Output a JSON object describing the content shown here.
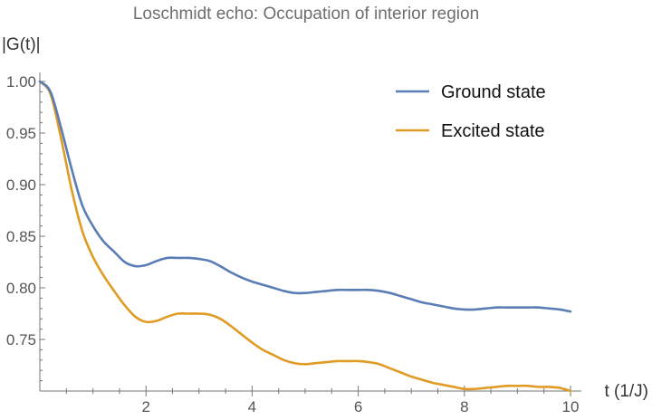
{
  "chart_data": {
    "type": "line",
    "title": "Loschmidt echo: Occupation of interior region",
    "xlabel": "t (1/J)",
    "ylabel": "|G(t)|",
    "xlim": [
      0,
      10
    ],
    "ylim": [
      0.7,
      1.0
    ],
    "x_ticks": [
      2,
      4,
      6,
      8,
      10
    ],
    "x_tick_labels": [
      "2",
      "4",
      "6",
      "8",
      "10"
    ],
    "y_ticks": [
      0.75,
      0.8,
      0.85,
      0.9,
      0.95,
      1.0
    ],
    "y_tick_labels": [
      "0.75",
      "0.80",
      "0.85",
      "0.90",
      "0.95",
      "1.00"
    ],
    "grid": false,
    "legend_position": "top-right",
    "x": [
      0,
      0.2,
      0.4,
      0.6,
      0.8,
      1.0,
      1.2,
      1.4,
      1.6,
      1.8,
      2.0,
      2.2,
      2.4,
      2.6,
      2.8,
      3.0,
      3.2,
      3.4,
      3.6,
      3.8,
      4.0,
      4.2,
      4.4,
      4.6,
      4.8,
      5.0,
      5.2,
      5.4,
      5.6,
      5.8,
      6.0,
      6.2,
      6.4,
      6.6,
      6.8,
      7.0,
      7.2,
      7.4,
      7.6,
      7.8,
      8.0,
      8.2,
      8.4,
      8.6,
      8.8,
      9.0,
      9.2,
      9.4,
      9.6,
      9.8,
      10.0
    ],
    "series": [
      {
        "name": "Ground state",
        "color": "#5b7db5",
        "values": [
          1.0,
          0.99,
          0.955,
          0.915,
          0.88,
          0.86,
          0.845,
          0.835,
          0.825,
          0.821,
          0.822,
          0.826,
          0.829,
          0.829,
          0.829,
          0.828,
          0.826,
          0.821,
          0.815,
          0.81,
          0.806,
          0.803,
          0.8,
          0.797,
          0.795,
          0.795,
          0.796,
          0.797,
          0.798,
          0.798,
          0.798,
          0.798,
          0.797,
          0.795,
          0.792,
          0.789,
          0.786,
          0.784,
          0.782,
          0.78,
          0.779,
          0.779,
          0.78,
          0.781,
          0.781,
          0.781,
          0.781,
          0.781,
          0.78,
          0.779,
          0.777
        ]
      },
      {
        "name": "Excited state",
        "color": "#e09b24",
        "values": [
          1.0,
          0.988,
          0.945,
          0.895,
          0.855,
          0.83,
          0.812,
          0.797,
          0.783,
          0.772,
          0.767,
          0.768,
          0.772,
          0.775,
          0.775,
          0.775,
          0.774,
          0.77,
          0.763,
          0.755,
          0.747,
          0.74,
          0.735,
          0.73,
          0.727,
          0.726,
          0.727,
          0.728,
          0.729,
          0.729,
          0.729,
          0.728,
          0.726,
          0.722,
          0.718,
          0.714,
          0.711,
          0.708,
          0.706,
          0.704,
          0.702,
          0.702,
          0.703,
          0.704,
          0.705,
          0.705,
          0.705,
          0.704,
          0.704,
          0.703,
          0.7
        ]
      }
    ]
  }
}
